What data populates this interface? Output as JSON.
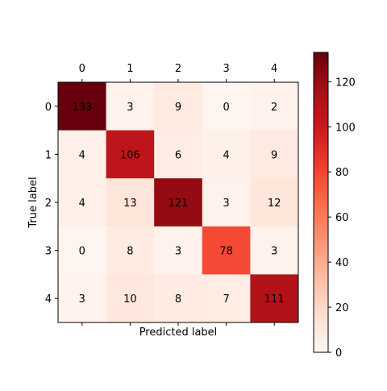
{
  "chart_data": {
    "type": "heatmap",
    "title": "",
    "xlabel": "Predicted label",
    "ylabel": "True label",
    "x_categories": [
      "0",
      "1",
      "2",
      "3",
      "4"
    ],
    "y_categories": [
      "0",
      "1",
      "2",
      "3",
      "4"
    ],
    "x_tick_position": "top",
    "matrix": [
      [
        133,
        3,
        9,
        0,
        2
      ],
      [
        4,
        106,
        6,
        4,
        9
      ],
      [
        4,
        13,
        121,
        3,
        12
      ],
      [
        0,
        8,
        3,
        78,
        3
      ],
      [
        3,
        10,
        8,
        7,
        111
      ]
    ],
    "colormap": "Reds",
    "value_range": [
      0,
      133
    ],
    "colorbar": {
      "ticks": [
        0,
        20,
        40,
        60,
        80,
        100,
        120
      ],
      "tick_labels": [
        "0",
        "20",
        "40",
        "60",
        "80",
        "100",
        "120"
      ]
    },
    "grid": false,
    "legend": "none",
    "colors": {
      "low": "#fff5f0",
      "high": "#67000d"
    }
  }
}
